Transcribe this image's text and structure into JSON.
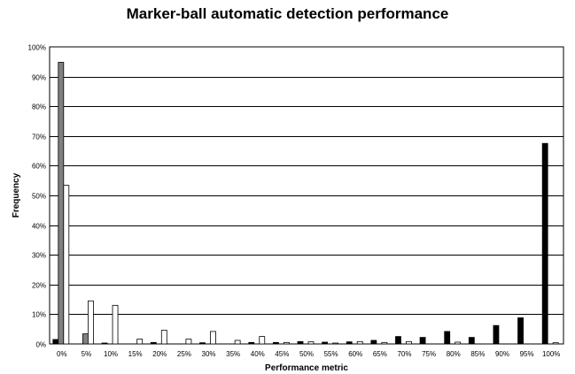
{
  "chart_data": {
    "type": "bar",
    "title": "Marker-ball automatic detection performance",
    "xlabel": "Performance metric",
    "ylabel": "Frequency",
    "ylim": [
      0,
      100
    ],
    "y_ticks": [
      "0%",
      "10%",
      "20%",
      "30%",
      "40%",
      "50%",
      "60%",
      "70%",
      "80%",
      "90%",
      "100%"
    ],
    "categories": [
      "0%",
      "5%",
      "10%",
      "15%",
      "20%",
      "25%",
      "30%",
      "35%",
      "40%",
      "45%",
      "50%",
      "55%",
      "60%",
      "65%",
      "70%",
      "75%",
      "80%",
      "85%",
      "90%",
      "95%",
      "100%"
    ],
    "grid": true,
    "legend": "none",
    "series": [
      {
        "color": "#000000",
        "values": [
          1.5,
          0,
          0.3,
          0,
          0.5,
          0,
          0.4,
          0,
          0.5,
          0.5,
          0.8,
          0.6,
          0.7,
          1.2,
          2.5,
          2.2,
          4.2,
          2.2,
          6.2,
          8.8,
          67.5
        ]
      },
      {
        "color": "#808080",
        "values": [
          94.8,
          3.4,
          0,
          0,
          0,
          0,
          0,
          0,
          0,
          0,
          0,
          0,
          0,
          0,
          0,
          0,
          0,
          0,
          0,
          0,
          0
        ]
      },
      {
        "color": "#ffffff",
        "values": [
          53.4,
          14.5,
          13.0,
          1.6,
          4.6,
          1.6,
          4.2,
          1.2,
          2.5,
          0.5,
          0.7,
          0.3,
          0.8,
          0.5,
          0.8,
          0,
          0.6,
          0,
          0,
          0,
          0.4
        ]
      }
    ]
  }
}
